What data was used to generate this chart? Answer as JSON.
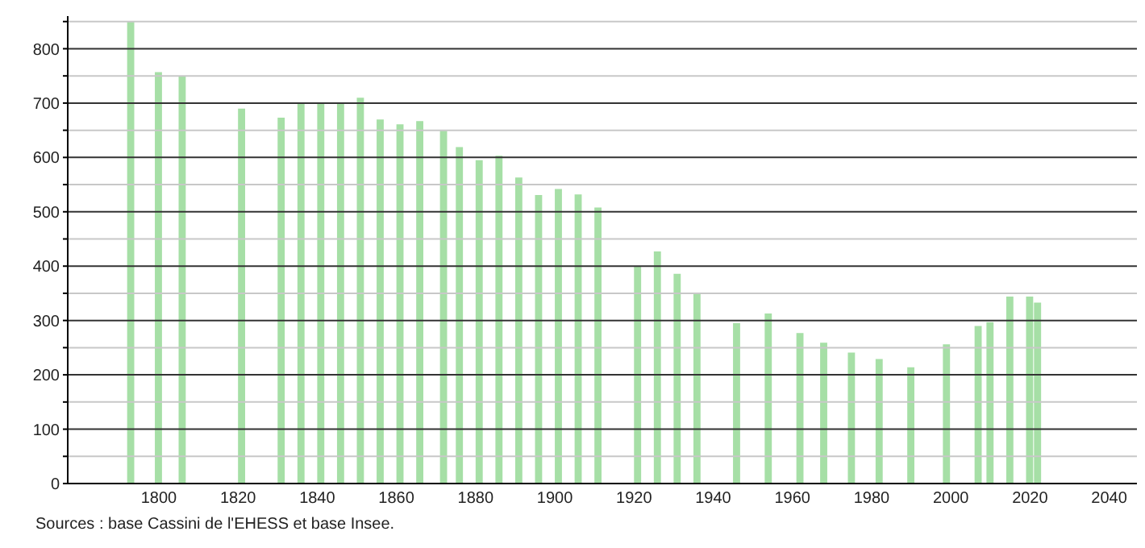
{
  "chart_data": {
    "type": "bar",
    "x": [
      1793,
      1800,
      1806,
      1821,
      1831,
      1836,
      1841,
      1846,
      1851,
      1856,
      1861,
      1866,
      1872,
      1876,
      1881,
      1886,
      1891,
      1896,
      1901,
      1906,
      1911,
      1921,
      1926,
      1931,
      1936,
      1946,
      1954,
      1962,
      1968,
      1975,
      1982,
      1990,
      1999,
      2007,
      2010,
      2015,
      2020,
      2022
    ],
    "values": [
      850,
      757,
      750,
      690,
      673,
      701,
      700,
      700,
      710,
      670,
      661,
      667,
      649,
      619,
      595,
      603,
      563,
      531,
      542,
      532,
      508,
      399,
      427,
      386,
      349,
      295,
      313,
      277,
      259,
      241,
      229,
      214,
      256,
      290,
      297,
      344,
      344,
      333
    ],
    "color": "#a6dfa6",
    "xlim": [
      1777,
      2047
    ],
    "xticks": [
      1800,
      1820,
      1840,
      1860,
      1880,
      1900,
      1920,
      1940,
      1960,
      1980,
      2000,
      2020,
      2040
    ],
    "ylim": [
      0,
      860
    ],
    "yticks": [
      0,
      {
        "value": 50,
        "label": null
      },
      100,
      {
        "value": 150,
        "label": null
      },
      200,
      {
        "value": 250,
        "label": null
      },
      300,
      {
        "value": 350,
        "label": null
      },
      400,
      {
        "value": 450,
        "label": null
      },
      500,
      {
        "value": 550,
        "label": null
      },
      600,
      {
        "value": 650,
        "label": null
      },
      700,
      {
        "value": 750,
        "label": null
      },
      800,
      {
        "value": 850,
        "label": null
      }
    ],
    "grid": "y",
    "annotations": [
      "Sources : base Cassini de l'EHESS et base Insee."
    ]
  }
}
